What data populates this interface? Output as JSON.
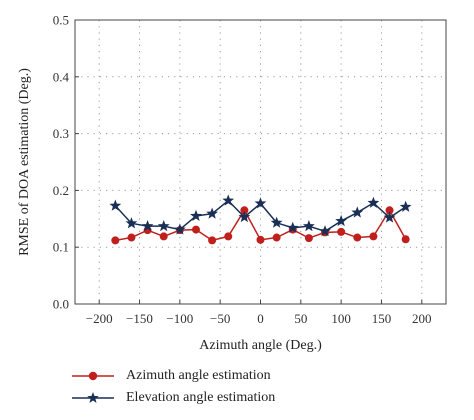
{
  "chart_data": {
    "type": "line",
    "xlabel": "Azimuth angle (Deg.)",
    "ylabel": "RMSE of DOA estimation (Deg.)",
    "xlim": [
      -230,
      230
    ],
    "ylim": [
      0,
      0.5
    ],
    "xticks": [
      -200,
      -150,
      -100,
      -50,
      0,
      50,
      100,
      150,
      200
    ],
    "yticks": [
      0.0,
      0.1,
      0.2,
      0.3,
      0.4,
      0.5
    ],
    "xtick_labels": [
      "−200",
      "−150",
      "−100",
      "−50",
      "0",
      "50",
      "100",
      "150",
      "200"
    ],
    "ytick_labels": [
      "0.0",
      "0.1",
      "0.2",
      "0.3",
      "0.4",
      "0.5"
    ],
    "grid": true,
    "legend_position": "bottom-left",
    "x": [
      -180,
      -160,
      -140,
      -120,
      -100,
      -80,
      -60,
      -40,
      -20,
      0,
      20,
      40,
      60,
      80,
      100,
      120,
      140,
      160,
      180
    ],
    "series": [
      {
        "name": "Azimuth angle estimation",
        "color": "#c0201d",
        "marker": "circle",
        "values": [
          0.112,
          0.117,
          0.13,
          0.119,
          0.13,
          0.131,
          0.112,
          0.119,
          0.165,
          0.113,
          0.117,
          0.131,
          0.116,
          0.126,
          0.127,
          0.117,
          0.119,
          0.165,
          0.114
        ]
      },
      {
        "name": "Elevation angle estimation",
        "color": "#1a2f55",
        "marker": "star",
        "values": [
          0.173,
          0.142,
          0.137,
          0.137,
          0.131,
          0.155,
          0.159,
          0.182,
          0.153,
          0.177,
          0.143,
          0.134,
          0.137,
          0.128,
          0.146,
          0.161,
          0.178,
          0.152,
          0.171
        ]
      }
    ]
  }
}
